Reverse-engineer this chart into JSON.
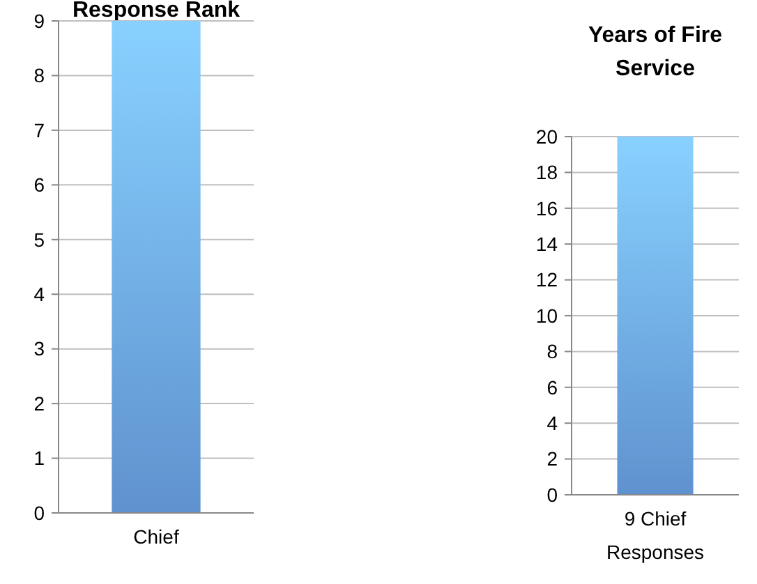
{
  "chart_data": [
    {
      "type": "bar",
      "title": "Response Rank",
      "categories": [
        "Chief"
      ],
      "values": [
        9
      ],
      "color": "#6aa3e6",
      "ylim": [
        0,
        9
      ],
      "yticks": [
        0,
        1,
        2,
        3,
        4,
        5,
        6,
        7,
        8,
        9
      ],
      "grid": "y"
    },
    {
      "type": "bar",
      "title": "Years of Fire Service",
      "categories": [
        "9 Chief Responses"
      ],
      "values": [
        20
      ],
      "color": "#6aa3e6",
      "ylim": [
        0,
        20
      ],
      "yticks": [
        0,
        2,
        4,
        6,
        8,
        10,
        12,
        14,
        16,
        18,
        20
      ],
      "grid": "y"
    }
  ]
}
